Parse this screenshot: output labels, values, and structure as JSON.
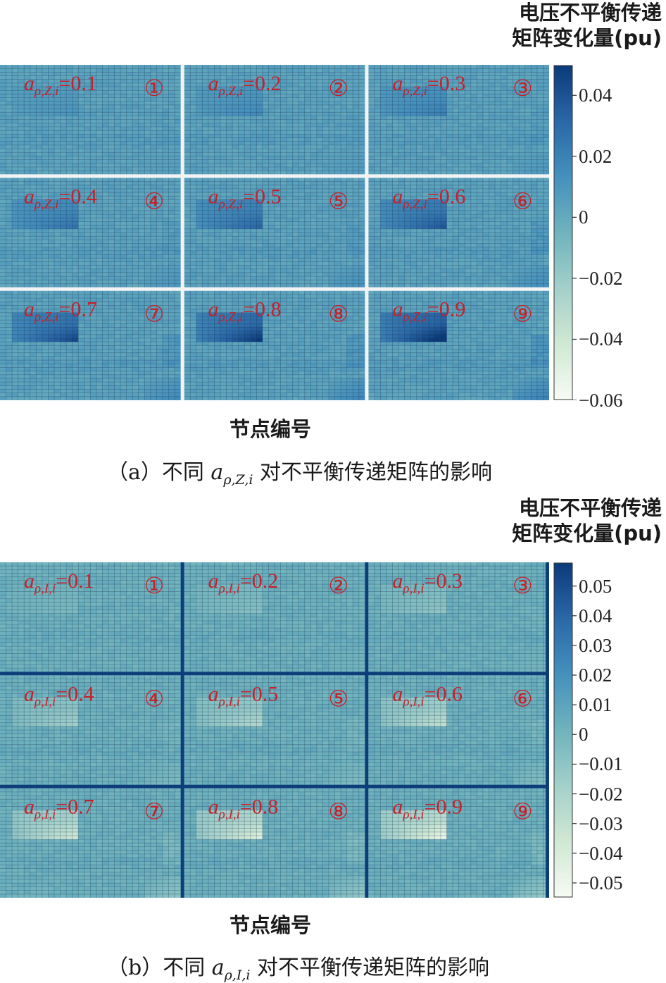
{
  "chart_data": [
    {
      "type": "heatmap",
      "panel": "a",
      "colorbar_title": [
        "电压不平衡传递",
        "矩阵变化量(pu)"
      ],
      "xlabel": "节点编号",
      "caption_prefix": "（a）不同 ",
      "caption_var_base": "a",
      "caption_var_sub": "ρ,Z,i",
      "caption_suffix": " 对不平衡传递矩阵的影响",
      "colorbar_ticks": [
        "0.04",
        "0.02",
        "0",
        "−0.02",
        "−0.04",
        "−0.06"
      ],
      "colorbar_tick_values": [
        0.04,
        0.02,
        0,
        -0.02,
        -0.04,
        -0.06
      ],
      "clim": [
        -0.06,
        0.05
      ],
      "grid_separator_color": "#f3f3f3",
      "subplots": [
        {
          "label_sub": "ρ,Z,i",
          "value": "=0.1",
          "circle": "①",
          "block_peak": 0.007
        },
        {
          "label_sub": "ρ,Z,i",
          "value": "=0.2",
          "circle": "②",
          "block_peak": 0.012
        },
        {
          "label_sub": "ρ,Z,i",
          "value": "=0.3",
          "circle": "③",
          "block_peak": 0.017
        },
        {
          "label_sub": "ρ,Z,i",
          "value": "=0.4",
          "circle": "④",
          "block_peak": 0.022
        },
        {
          "label_sub": "ρ,Z,i",
          "value": "=0.5",
          "circle": "⑤",
          "block_peak": 0.028
        },
        {
          "label_sub": "ρ,Z,i",
          "value": "=0.6",
          "circle": "⑥",
          "block_peak": 0.034
        },
        {
          "label_sub": "ρ,Z,i",
          "value": "=0.7",
          "circle": "⑦",
          "block_peak": 0.04
        },
        {
          "label_sub": "ρ,Z,i",
          "value": "=0.8",
          "circle": "⑧",
          "block_peak": 0.046
        },
        {
          "label_sub": "ρ,Z,i",
          "value": "=0.9",
          "circle": "⑨",
          "block_peak": 0.052
        }
      ]
    },
    {
      "type": "heatmap",
      "panel": "b",
      "colorbar_title": [
        "电压不平衡传递",
        "矩阵变化量(pu)"
      ],
      "xlabel": "节点编号",
      "caption_prefix": "（b）不同 ",
      "caption_var_base": "a",
      "caption_var_sub": "ρ,I,i",
      "caption_suffix": " 对不平衡传递矩阵的影响",
      "colorbar_ticks": [
        "0.05",
        "0.04",
        "0.03",
        "0.02",
        "0.01",
        "0",
        "−0.01",
        "−0.02",
        "−0.03",
        "−0.04",
        "−0.05"
      ],
      "colorbar_tick_values": [
        0.05,
        0.04,
        0.03,
        0.02,
        0.01,
        0,
        -0.01,
        -0.02,
        -0.03,
        -0.04,
        -0.05
      ],
      "clim": [
        -0.055,
        0.058
      ],
      "grid_separator_color": "#0d3e7a",
      "subplots": [
        {
          "label_sub": "ρ,I,i",
          "value": "=0.1",
          "circle": "①",
          "block_peak": -0.006
        },
        {
          "label_sub": "ρ,I,i",
          "value": "=0.2",
          "circle": "②",
          "block_peak": -0.01
        },
        {
          "label_sub": "ρ,I,i",
          "value": "=0.3",
          "circle": "③",
          "block_peak": -0.014
        },
        {
          "label_sub": "ρ,I,i",
          "value": "=0.4",
          "circle": "④",
          "block_peak": -0.02
        },
        {
          "label_sub": "ρ,I,i",
          "value": "=0.5",
          "circle": "⑤",
          "block_peak": -0.026
        },
        {
          "label_sub": "ρ,I,i",
          "value": "=0.6",
          "circle": "⑥",
          "block_peak": -0.032
        },
        {
          "label_sub": "ρ,I,i",
          "value": "=0.7",
          "circle": "⑦",
          "block_peak": -0.04
        },
        {
          "label_sub": "ρ,I,i",
          "value": "=0.8",
          "circle": "⑧",
          "block_peak": -0.046
        },
        {
          "label_sub": "ρ,I,i",
          "value": "=0.9",
          "circle": "⑨",
          "block_peak": -0.052
        }
      ]
    }
  ],
  "label_color": "#c8202a",
  "cmap": [
    "#f7fbf4",
    "#cfe8d3",
    "#a3d0ca",
    "#6fb3bd",
    "#4590bd",
    "#2a68a8",
    "#0b3a7a"
  ]
}
